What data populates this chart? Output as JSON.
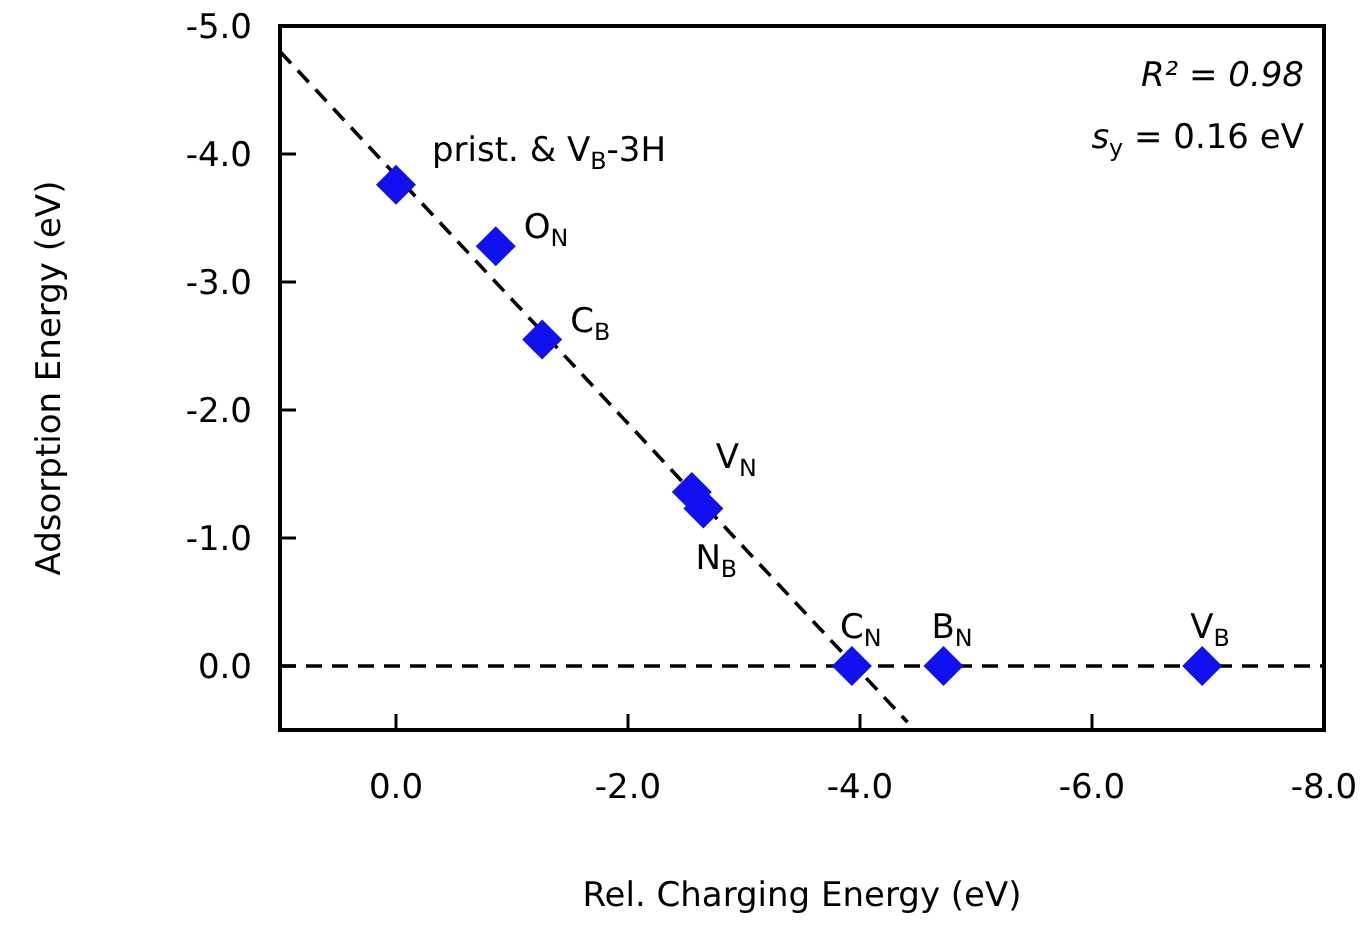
{
  "chart_data": {
    "type": "scatter",
    "xlabel": "Rel. Charging Energy (eV)",
    "ylabel": "Adsorption Energy (eV)",
    "xlim": [
      1.0,
      -8.0
    ],
    "ylim": [
      0.5,
      -5.0
    ],
    "xticks": [
      {
        "value": 0,
        "label": "0.0"
      },
      {
        "value": -2,
        "label": "-2.0"
      },
      {
        "value": -4,
        "label": "-4.0"
      },
      {
        "value": -6,
        "label": "-6.0"
      },
      {
        "value": -8,
        "label": "-8.0"
      }
    ],
    "yticks": [
      {
        "value": 0,
        "label": "0.0"
      },
      {
        "value": -1,
        "label": "-1.0"
      },
      {
        "value": -2,
        "label": "-2.0"
      },
      {
        "value": -3,
        "label": "-3.0"
      },
      {
        "value": -4,
        "label": "-4.0"
      },
      {
        "value": -5,
        "label": "-5.0"
      }
    ],
    "grid": false,
    "series": [
      {
        "color": "#1010f0",
        "marker": "diamond",
        "x": [
          0.0,
          -0.86,
          -1.26,
          -2.55,
          -2.65,
          -3.93,
          -4.72,
          -6.95
        ],
        "values": [
          -3.76,
          -3.28,
          -2.55,
          -1.36,
          -1.23,
          0.0,
          0.0,
          0.0
        ]
      },
      {
        "type": "line",
        "color": "#000000",
        "line_style": "dashed",
        "marker": "none",
        "x": [
          1.0,
          -4.41
        ],
        "values": [
          -4.8,
          0.44
        ]
      }
    ],
    "ref_lines": [
      {
        "axis": "y",
        "value": 0,
        "line_style": "dashed",
        "color": "#000000"
      }
    ],
    "annotations": [
      {
        "text": "prist. & V$_{B}$-3H",
        "x": 0.0,
        "y": -3.76
      },
      {
        "text": "O$_{N}$",
        "x": -0.86,
        "y": -3.28
      },
      {
        "text": "C$_{B}$",
        "x": -1.26,
        "y": -2.55
      },
      {
        "text": "V$_{N}$",
        "x": -2.55,
        "y": -1.36
      },
      {
        "text": "N$_{B}$",
        "x": -2.65,
        "y": -1.23
      },
      {
        "text": "C$_{N}$",
        "x": -3.93,
        "y": 0.0
      },
      {
        "text": "B$_{N}$",
        "x": -4.72,
        "y": 0.0
      },
      {
        "text": "V$_{B}$",
        "x": -6.95,
        "y": 0.0
      },
      "R² = 0.98",
      "s$_{y}$ = 0.16 eV"
    ]
  }
}
